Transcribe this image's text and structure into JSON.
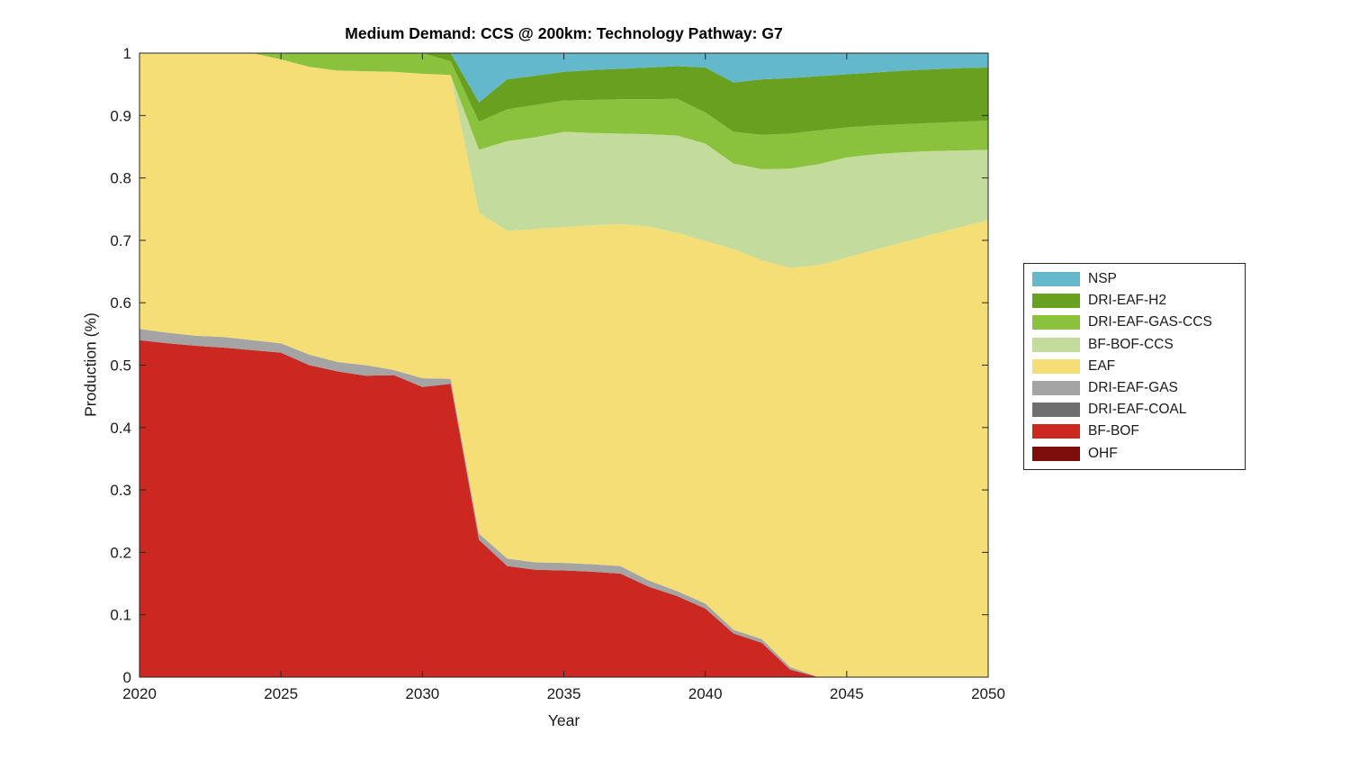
{
  "title": "Medium Demand: CCS @ 200km: Technology Pathway: G7",
  "axes": {
    "xlabel": "Year",
    "ylabel": "Production (%)",
    "x_ticks": [
      2020,
      2025,
      2030,
      2035,
      2040,
      2045,
      2050
    ],
    "x_tick_labels": [
      "2020",
      "2025",
      "2030",
      "2035",
      "2040",
      "2045",
      "2050"
    ],
    "y_ticks": [
      0,
      0.1,
      0.2,
      0.3,
      0.4,
      0.5,
      0.6,
      0.7,
      0.8,
      0.9,
      1
    ],
    "y_tick_labels": [
      "0",
      "0.1",
      "0.2",
      "0.3",
      "0.4",
      "0.5",
      "0.6",
      "0.7",
      "0.8",
      "0.9",
      "1"
    ],
    "axis_color": "#262626",
    "text_color": "#1a1a1a"
  },
  "legend": {
    "entries": [
      {
        "label": "NSP",
        "color": "#63b8cc"
      },
      {
        "label": "DRI-EAF-H2",
        "color": "#68a01f"
      },
      {
        "label": "DRI-EAF-GAS-CCS",
        "color": "#8ac13d"
      },
      {
        "label": "BF-BOF-CCS",
        "color": "#c3dc9b"
      },
      {
        "label": "EAF",
        "color": "#f6de76"
      },
      {
        "label": "DRI-EAF-GAS",
        "color": "#a4a4a4"
      },
      {
        "label": "DRI-EAF-COAL",
        "color": "#6f6f6f"
      },
      {
        "label": "BF-BOF",
        "color": "#cb2821"
      },
      {
        "label": "OHF",
        "color": "#7d0e0b"
      }
    ]
  },
  "chart_data": {
    "type": "area",
    "stacked": true,
    "title": "Medium Demand: CCS @ 200km: Technology Pathway: G7",
    "xlabel": "Year",
    "ylabel": "Production (%)",
    "xlim": [
      2020,
      2050
    ],
    "ylim": [
      0,
      1
    ],
    "grid": false,
    "legend_position": "outside-right",
    "x": [
      2020,
      2021,
      2022,
      2023,
      2024,
      2025,
      2026,
      2027,
      2028,
      2029,
      2030,
      2031,
      2032,
      2033,
      2034,
      2035,
      2036,
      2037,
      2038,
      2039,
      2040,
      2041,
      2042,
      2043,
      2044,
      2045,
      2046,
      2047,
      2048,
      2049,
      2050
    ],
    "stack_order": "bottom-to-top",
    "series": [
      {
        "name": "OHF",
        "color": "#7d0e0b",
        "values": [
          0,
          0,
          0,
          0,
          0,
          0,
          0,
          0,
          0,
          0,
          0,
          0,
          0,
          0,
          0,
          0,
          0,
          0,
          0,
          0,
          0,
          0,
          0,
          0,
          0,
          0,
          0,
          0,
          0,
          0,
          0
        ]
      },
      {
        "name": "BF-BOF",
        "color": "#cb2821",
        "values": [
          0.54,
          0.535,
          0.531,
          0.528,
          0.524,
          0.52,
          0.5,
          0.49,
          0.483,
          0.484,
          0.465,
          0.47,
          0.22,
          0.178,
          0.172,
          0.171,
          0.169,
          0.166,
          0.145,
          0.13,
          0.11,
          0.07,
          0.055,
          0.012,
          0,
          0,
          0,
          0,
          0,
          0,
          0
        ]
      },
      {
        "name": "DRI-EAF-COAL",
        "color": "#6f6f6f",
        "values": [
          0,
          0,
          0,
          0,
          0,
          0,
          0,
          0,
          0,
          0,
          0,
          0,
          0,
          0,
          0,
          0,
          0,
          0,
          0,
          0,
          0,
          0,
          0,
          0,
          0,
          0,
          0,
          0,
          0,
          0,
          0
        ]
      },
      {
        "name": "DRI-EAF-GAS",
        "color": "#a4a4a4",
        "values": [
          0.018,
          0.017,
          0.016,
          0.017,
          0.016,
          0.015,
          0.017,
          0.015,
          0.017,
          0.008,
          0.014,
          0.008,
          0.01,
          0.012,
          0.012,
          0.012,
          0.012,
          0.012,
          0.01,
          0.008,
          0.008,
          0.006,
          0.006,
          0.004,
          0,
          0,
          0,
          0,
          0,
          0,
          0
        ]
      },
      {
        "name": "EAF",
        "color": "#f6de76",
        "values": [
          0.442,
          0.448,
          0.453,
          0.455,
          0.46,
          0.455,
          0.461,
          0.467,
          0.471,
          0.478,
          0.488,
          0.487,
          0.514,
          0.525,
          0.534,
          0.538,
          0.543,
          0.548,
          0.567,
          0.574,
          0.581,
          0.61,
          0.607,
          0.64,
          0.66,
          0.672,
          0.685,
          0.697,
          0.709,
          0.721,
          0.732
        ]
      },
      {
        "name": "BF-BOF-CCS",
        "color": "#c3dc9b",
        "values": [
          0,
          0,
          0,
          0,
          0,
          0,
          0,
          0,
          0,
          0,
          0,
          0,
          0.101,
          0.144,
          0.147,
          0.153,
          0.148,
          0.145,
          0.148,
          0.156,
          0.156,
          0.137,
          0.146,
          0.159,
          0.162,
          0.161,
          0.153,
          0.144,
          0.134,
          0.123,
          0.113
        ]
      },
      {
        "name": "DRI-EAF-GAS-CCS",
        "color": "#8ac13d",
        "values": [
          0,
          0,
          0,
          0,
          0,
          0.01,
          0.022,
          0.028,
          0.029,
          0.03,
          0.033,
          0.022,
          0.045,
          0.051,
          0.052,
          0.05,
          0.053,
          0.055,
          0.056,
          0.059,
          0.05,
          0.051,
          0.055,
          0.056,
          0.054,
          0.048,
          0.046,
          0.045,
          0.045,
          0.046,
          0.047
        ]
      },
      {
        "name": "DRI-EAF-H2",
        "color": "#68a01f",
        "values": [
          0,
          0,
          0,
          0,
          0,
          0,
          0,
          0,
          0,
          0,
          0,
          0.013,
          0.031,
          0.048,
          0.047,
          0.046,
          0.048,
          0.049,
          0.051,
          0.052,
          0.072,
          0.079,
          0.089,
          0.089,
          0.087,
          0.085,
          0.085,
          0.086,
          0.086,
          0.086,
          0.085
        ]
      },
      {
        "name": "NSP",
        "color": "#63b8cc",
        "values": [
          0,
          0,
          0,
          0,
          0,
          0,
          0,
          0,
          0,
          0,
          0,
          0,
          0.079,
          0.042,
          0.036,
          0.03,
          0.027,
          0.025,
          0.023,
          0.021,
          0.023,
          0.047,
          0.042,
          0.04,
          0.037,
          0.034,
          0.031,
          0.028,
          0.026,
          0.024,
          0.023
        ]
      }
    ]
  }
}
